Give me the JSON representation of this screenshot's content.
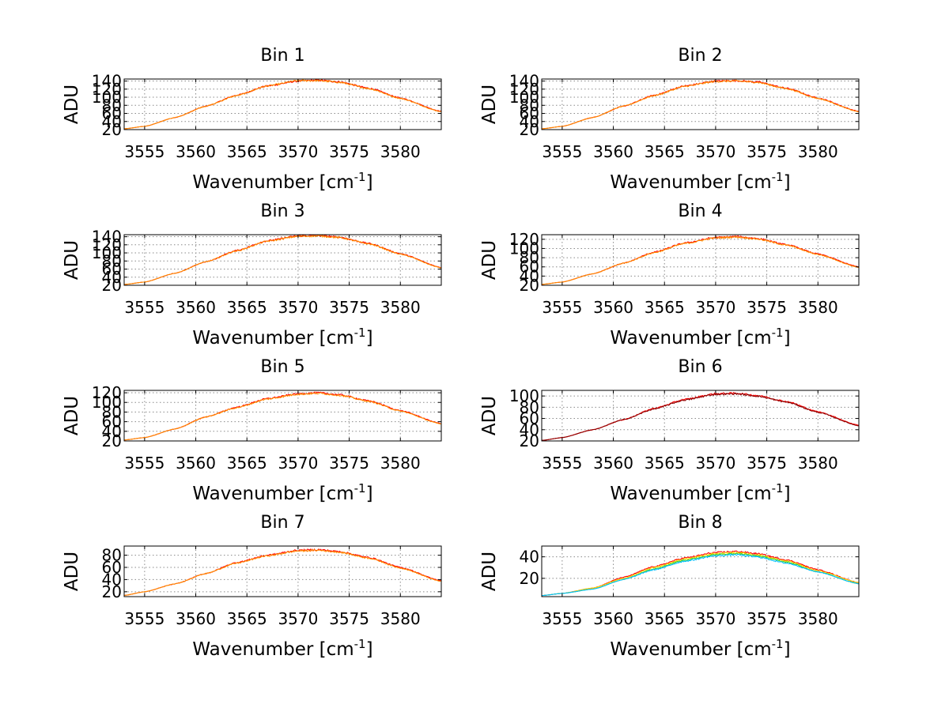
{
  "chart_data": [
    {
      "type": "line",
      "title": "Bin 1",
      "xlabel": "Wavenumber [cm",
      "xlabel_sup": "-1",
      "xlabel_close": "]",
      "ylabel": "ADU",
      "xlim": [
        3553,
        3584
      ],
      "ylim": [
        20,
        145
      ],
      "x_ticks": [
        3555,
        3560,
        3565,
        3570,
        3575,
        3580
      ],
      "y_ticks": [
        20,
        40,
        60,
        80,
        100,
        120,
        140
      ],
      "x": [
        3553,
        3555,
        3558,
        3561,
        3564,
        3567,
        3570,
        3572,
        3574,
        3577,
        3580,
        3584
      ],
      "series": [
        {
          "values": [
            22,
            28,
            50,
            78,
            105,
            128,
            140,
            142,
            138,
            122,
            98,
            65
          ],
          "color": "#ff0000"
        },
        {
          "values": [
            22,
            28,
            50,
            78,
            104,
            128,
            141,
            141,
            137,
            121,
            97,
            64
          ],
          "color": "#ff8c00"
        }
      ],
      "grid": true
    },
    {
      "type": "line",
      "title": "Bin 2",
      "xlabel": "Wavenumber [cm",
      "xlabel_sup": "-1",
      "xlabel_close": "]",
      "ylabel": "ADU",
      "xlim": [
        3553,
        3584
      ],
      "ylim": [
        20,
        145
      ],
      "x_ticks": [
        3555,
        3560,
        3565,
        3570,
        3575,
        3580
      ],
      "y_ticks": [
        20,
        40,
        60,
        80,
        100,
        120,
        140
      ],
      "x": [
        3553,
        3555,
        3558,
        3561,
        3564,
        3567,
        3570,
        3572,
        3574,
        3577,
        3580,
        3584
      ],
      "series": [
        {
          "values": [
            22,
            28,
            50,
            78,
            105,
            128,
            140,
            141,
            138,
            122,
            98,
            65
          ],
          "color": "#ff0000"
        },
        {
          "values": [
            22,
            28,
            50,
            78,
            104,
            127,
            139,
            140,
            137,
            121,
            97,
            64
          ],
          "color": "#ff8c00"
        }
      ],
      "grid": true
    },
    {
      "type": "line",
      "title": "Bin 3",
      "xlabel": "Wavenumber [cm",
      "xlabel_sup": "-1",
      "xlabel_close": "]",
      "ylabel": "ADU",
      "xlim": [
        3553,
        3584
      ],
      "ylim": [
        20,
        145
      ],
      "x_ticks": [
        3555,
        3560,
        3565,
        3570,
        3575,
        3580
      ],
      "y_ticks": [
        20,
        40,
        60,
        80,
        100,
        120,
        140
      ],
      "x": [
        3553,
        3555,
        3558,
        3561,
        3564,
        3567,
        3570,
        3572,
        3574,
        3577,
        3580,
        3584
      ],
      "series": [
        {
          "values": [
            22,
            28,
            50,
            78,
            106,
            130,
            142,
            143,
            139,
            123,
            98,
            64
          ],
          "color": "#ff0000"
        },
        {
          "values": [
            22,
            28,
            50,
            78,
            105,
            129,
            141,
            142,
            138,
            122,
            97,
            63
          ],
          "color": "#ff8c00"
        }
      ],
      "grid": true
    },
    {
      "type": "line",
      "title": "Bin 4",
      "xlabel": "Wavenumber [cm",
      "xlabel_sup": "-1",
      "xlabel_close": "]",
      "ylabel": "ADU",
      "xlim": [
        3553,
        3584
      ],
      "ylim": [
        20,
        130
      ],
      "x_ticks": [
        3555,
        3560,
        3565,
        3570,
        3575,
        3580
      ],
      "y_ticks": [
        20,
        40,
        60,
        80,
        100,
        120
      ],
      "x": [
        3553,
        3555,
        3558,
        3561,
        3564,
        3567,
        3570,
        3572,
        3574,
        3577,
        3580,
        3584
      ],
      "series": [
        {
          "values": [
            22,
            27,
            45,
            68,
            92,
            112,
            124,
            126,
            122,
            108,
            88,
            60
          ],
          "color": "#ff0000"
        },
        {
          "values": [
            22,
            27,
            45,
            68,
            91,
            111,
            123,
            125,
            121,
            107,
            87,
            59
          ],
          "color": "#ff8c00"
        }
      ],
      "grid": true
    },
    {
      "type": "line",
      "title": "Bin 5",
      "xlabel": "Wavenumber [cm",
      "xlabel_sup": "-1",
      "xlabel_close": "]",
      "ylabel": "ADU",
      "xlim": [
        3553,
        3584
      ],
      "ylim": [
        20,
        125
      ],
      "x_ticks": [
        3555,
        3560,
        3565,
        3570,
        3575,
        3580
      ],
      "y_ticks": [
        20,
        40,
        60,
        80,
        100,
        120
      ],
      "x": [
        3553,
        3555,
        3558,
        3561,
        3564,
        3567,
        3570,
        3572,
        3574,
        3577,
        3580,
        3584
      ],
      "series": [
        {
          "values": [
            22,
            27,
            45,
            70,
            90,
            108,
            118,
            120,
            116,
            103,
            83,
            56
          ],
          "color": "#ff0000"
        },
        {
          "values": [
            22,
            27,
            45,
            70,
            89,
            107,
            117,
            119,
            115,
            102,
            82,
            55
          ],
          "color": "#ff8c00"
        }
      ],
      "grid": true
    },
    {
      "type": "line",
      "title": "Bin 6",
      "xlabel": "Wavenumber [cm",
      "xlabel_sup": "-1",
      "xlabel_close": "]",
      "ylabel": "ADU",
      "xlim": [
        3553,
        3584
      ],
      "ylim": [
        20,
        110
      ],
      "x_ticks": [
        3555,
        3560,
        3565,
        3570,
        3575,
        3580
      ],
      "y_ticks": [
        20,
        40,
        60,
        80,
        100
      ],
      "x": [
        3553,
        3555,
        3558,
        3561,
        3564,
        3567,
        3570,
        3572,
        3574,
        3577,
        3580,
        3584
      ],
      "series": [
        {
          "values": [
            21,
            26,
            40,
            58,
            78,
            94,
            104,
            105,
            101,
            90,
            72,
            48
          ],
          "color": "#ff0000"
        },
        {
          "values": [
            21,
            26,
            40,
            58,
            77,
            93,
            103,
            104,
            100,
            89,
            71,
            47
          ],
          "color": "#8b0000"
        }
      ],
      "grid": true
    },
    {
      "type": "line",
      "title": "Bin 7",
      "xlabel": "Wavenumber [cm",
      "xlabel_sup": "-1",
      "xlabel_close": "]",
      "ylabel": "ADU",
      "xlim": [
        3553,
        3584
      ],
      "ylim": [
        12,
        95
      ],
      "x_ticks": [
        3555,
        3560,
        3565,
        3570,
        3575,
        3580
      ],
      "y_ticks": [
        20,
        40,
        60,
        80
      ],
      "x": [
        3553,
        3555,
        3558,
        3561,
        3564,
        3567,
        3570,
        3572,
        3574,
        3577,
        3580,
        3584
      ],
      "series": [
        {
          "values": [
            14,
            20,
            33,
            50,
            68,
            80,
            88,
            89,
            86,
            76,
            60,
            38
          ],
          "color": "#ff0000"
        },
        {
          "values": [
            14,
            20,
            33,
            50,
            67,
            79,
            87,
            88,
            85,
            75,
            59,
            37
          ],
          "color": "#ff8c00"
        }
      ],
      "grid": true
    },
    {
      "type": "line",
      "title": "Bin 8",
      "xlabel": "Wavenumber [cm",
      "xlabel_sup": "-1",
      "xlabel_close": "]",
      "ylabel": "ADU",
      "xlim": [
        3553,
        3584
      ],
      "ylim": [
        3,
        50
      ],
      "x_ticks": [
        3555,
        3560,
        3565,
        3570,
        3575,
        3580
      ],
      "y_ticks": [
        20,
        40
      ],
      "x": [
        3553,
        3555,
        3558,
        3561,
        3564,
        3567,
        3570,
        3572,
        3574,
        3577,
        3580,
        3584
      ],
      "series": [
        {
          "values": [
            4,
            6,
            11,
            21,
            31,
            39,
            44,
            45,
            43,
            37,
            28,
            16
          ],
          "color": "#ff0000"
        },
        {
          "values": [
            4,
            6,
            11,
            20,
            30,
            38,
            43,
            44,
            42,
            36,
            27,
            16
          ],
          "color": "#ffd700"
        },
        {
          "values": [
            4,
            6,
            10,
            19,
            29,
            37,
            42,
            43,
            41,
            35,
            26,
            15
          ],
          "color": "#32cd32"
        },
        {
          "values": [
            4,
            6,
            10,
            19,
            28,
            36,
            41,
            42,
            40,
            34,
            26,
            15
          ],
          "color": "#00bfff"
        }
      ],
      "grid": true
    }
  ]
}
